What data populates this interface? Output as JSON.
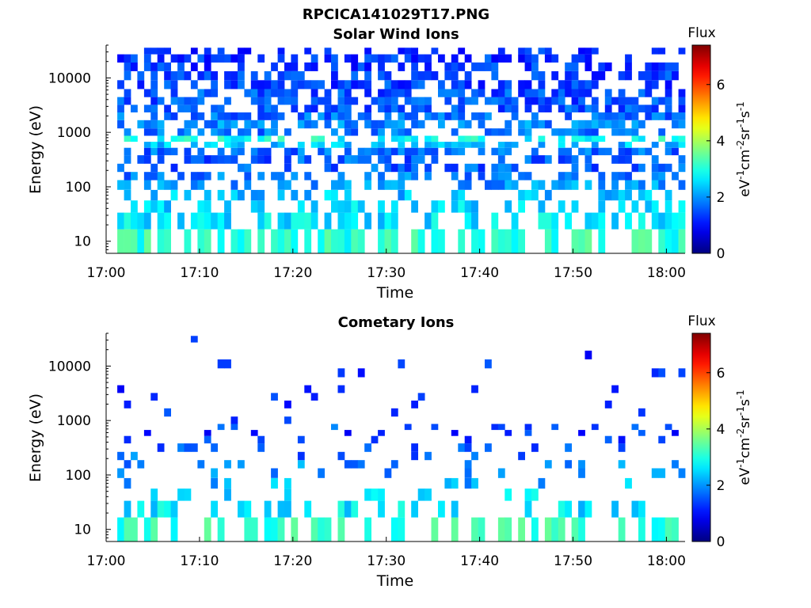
{
  "figure": {
    "title": "RPCICA141029T17.PNG"
  },
  "chart_data": [
    {
      "type": "heatmap",
      "title": "Solar Wind Ions",
      "xlabel": "Time",
      "ylabel": "Energy (eV)",
      "y_scale": "log",
      "ylim": [
        6,
        40000
      ],
      "xlim": [
        "17:00",
        "18:02"
      ],
      "x_ticks": [
        "17:00",
        "17:10",
        "17:20",
        "17:30",
        "17:40",
        "17:50",
        "18:00"
      ],
      "y_ticks": [
        "10",
        "100",
        "1000",
        "10000"
      ],
      "colorbar": {
        "label_top": "Flux",
        "label_side": "eV-1cm-2sr-1s-1",
        "label_side_parts": [
          "eV",
          "-1",
          "cm",
          "-2",
          "sr",
          "-1",
          "s",
          "-1"
        ],
        "ticks": [
          "0",
          "2",
          "4",
          "6"
        ],
        "range": [
          0,
          7.4
        ],
        "colormap": "jet"
      },
      "rows": [
        {
          "e": 11,
          "lvl": 3.1,
          "d": 0.72
        },
        {
          "e": 25,
          "lvl": 2.6,
          "d": 0.55
        },
        {
          "e": 45,
          "lvl": 2.5,
          "d": 0.4
        },
        {
          "e": 70,
          "lvl": 2.3,
          "d": 0.35
        },
        {
          "e": 110,
          "lvl": 2.0,
          "d": 0.45
        },
        {
          "e": 160,
          "lvl": 1.8,
          "d": 0.42
        },
        {
          "e": 220,
          "lvl": 1.6,
          "d": 0.4
        },
        {
          "e": 320,
          "lvl": 1.6,
          "d": 0.45
        },
        {
          "e": 450,
          "lvl": 1.7,
          "d": 0.5
        },
        {
          "e": 600,
          "lvl": 2.3,
          "d": 0.55
        },
        {
          "e": 750,
          "lvl": 2.9,
          "d": 0.55
        },
        {
          "e": 1000,
          "lvl": 1.8,
          "d": 0.5
        },
        {
          "e": 1400,
          "lvl": 1.9,
          "d": 0.55
        },
        {
          "e": 2000,
          "lvl": 1.7,
          "d": 0.6
        },
        {
          "e": 2700,
          "lvl": 1.5,
          "d": 0.6
        },
        {
          "e": 3800,
          "lvl": 1.5,
          "d": 0.55
        },
        {
          "e": 5200,
          "lvl": 1.5,
          "d": 0.6
        },
        {
          "e": 7500,
          "lvl": 1.4,
          "d": 0.55
        },
        {
          "e": 11000,
          "lvl": 1.4,
          "d": 0.55
        },
        {
          "e": 16000,
          "lvl": 1.3,
          "d": 0.55
        },
        {
          "e": 23000,
          "lvl": 1.3,
          "d": 0.6
        },
        {
          "e": 32000,
          "lvl": 1.2,
          "d": 0.35
        }
      ]
    },
    {
      "type": "heatmap",
      "title": "Cometary Ions",
      "xlabel": "Time",
      "ylabel": "Energy (eV)",
      "y_scale": "log",
      "ylim": [
        6,
        40000
      ],
      "xlim": [
        "17:00",
        "18:02"
      ],
      "x_ticks": [
        "17:00",
        "17:10",
        "17:20",
        "17:30",
        "17:40",
        "17:50",
        "18:00"
      ],
      "y_ticks": [
        "10",
        "100",
        "1000",
        "10000"
      ],
      "colorbar": {
        "label_top": "Flux",
        "label_side": "eV-1cm-2sr-1s-1",
        "label_side_parts": [
          "eV",
          "-1",
          "cm",
          "-2",
          "sr",
          "-1",
          "s",
          "-1"
        ],
        "ticks": [
          "0",
          "2",
          "4",
          "6"
        ],
        "range": [
          0,
          7.4
        ],
        "colormap": "jet"
      },
      "rows": [
        {
          "e": 11,
          "lvl": 3.1,
          "d": 0.45
        },
        {
          "e": 25,
          "lvl": 2.6,
          "d": 0.32
        },
        {
          "e": 45,
          "lvl": 2.5,
          "d": 0.15
        },
        {
          "e": 70,
          "lvl": 2.2,
          "d": 0.18
        },
        {
          "e": 110,
          "lvl": 2.0,
          "d": 0.15
        },
        {
          "e": 160,
          "lvl": 1.9,
          "d": 0.12
        },
        {
          "e": 220,
          "lvl": 1.7,
          "d": 0.12
        },
        {
          "e": 320,
          "lvl": 1.6,
          "d": 0.14
        },
        {
          "e": 450,
          "lvl": 1.4,
          "d": 0.12
        },
        {
          "e": 600,
          "lvl": 1.3,
          "d": 0.08
        },
        {
          "e": 750,
          "lvl": 1.6,
          "d": 0.1
        },
        {
          "e": 1000,
          "lvl": 1.3,
          "d": 0.08
        },
        {
          "e": 1400,
          "lvl": 1.2,
          "d": 0.1
        },
        {
          "e": 2000,
          "lvl": 1.2,
          "d": 0.08
        },
        {
          "e": 2700,
          "lvl": 1.2,
          "d": 0.06
        },
        {
          "e": 3800,
          "lvl": 1.2,
          "d": 0.05
        },
        {
          "e": 5200,
          "lvl": 1.2,
          "d": 0.03
        },
        {
          "e": 7500,
          "lvl": 1.2,
          "d": 0.03
        },
        {
          "e": 11000,
          "lvl": 1.2,
          "d": 0.03
        },
        {
          "e": 16000,
          "lvl": 1.2,
          "d": 0.02
        },
        {
          "e": 23000,
          "lvl": 1.2,
          "d": 0.02
        },
        {
          "e": 32000,
          "lvl": 1.2,
          "d": 0.02
        }
      ]
    }
  ]
}
